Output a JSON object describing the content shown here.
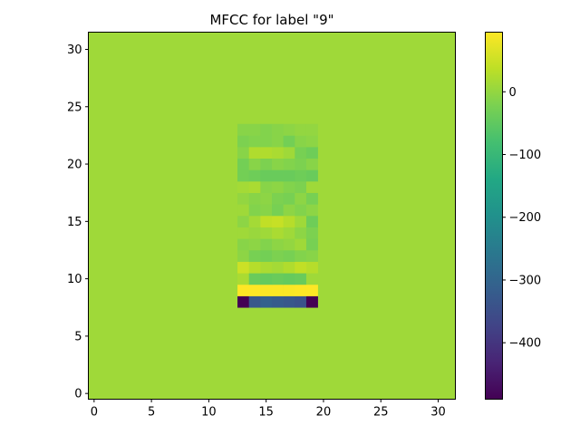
{
  "chart_data": {
    "type": "heatmap",
    "title": "MFCC for label \"9\"",
    "xlabel": "",
    "ylabel": "",
    "xlim": [
      -0.5,
      31.5
    ],
    "ylim": [
      -0.5,
      31.5
    ],
    "grid": false,
    "colormap": "viridis",
    "background_value": 10,
    "color_range": [
      -490,
      95
    ],
    "x_ticks": [
      0,
      5,
      10,
      15,
      20,
      25,
      30
    ],
    "x_tick_labels": [
      "0",
      "5",
      "10",
      "15",
      "20",
      "25",
      "30"
    ],
    "y_ticks": [
      0,
      5,
      10,
      15,
      20,
      25,
      30
    ],
    "y_tick_labels": [
      "0",
      "5",
      "10",
      "15",
      "20",
      "25",
      "30"
    ],
    "colorbar": {
      "ticks": [
        0,
        -100,
        -200,
        -300,
        -400
      ],
      "tick_labels": [
        "0",
        "−100",
        "−200",
        "−300",
        "−400"
      ]
    },
    "patch": {
      "x_start": 13,
      "y_start": 8,
      "rows_from_y8_upward": [
        [
          -490,
          -330,
          -310,
          -320,
          -330,
          -340,
          -490
        ],
        [
          95,
          95,
          92,
          92,
          92,
          95,
          95
        ],
        [
          20,
          -40,
          -45,
          -40,
          -45,
          -40,
          10
        ],
        [
          50,
          30,
          20,
          15,
          25,
          40,
          30
        ],
        [
          -5,
          -25,
          -30,
          -20,
          -25,
          -15,
          -10
        ],
        [
          -10,
          -5,
          -15,
          -5,
          0,
          10,
          -25
        ],
        [
          10,
          5,
          10,
          20,
          10,
          -5,
          -20
        ],
        [
          -5,
          15,
          40,
          45,
          30,
          10,
          -35
        ],
        [
          10,
          -15,
          -10,
          -25,
          -5,
          -15,
          -5
        ],
        [
          0,
          -10,
          -5,
          -20,
          -25,
          -5,
          -25
        ],
        [
          15,
          20,
          -10,
          -5,
          -15,
          -20,
          10
        ],
        [
          -30,
          -35,
          -40,
          -40,
          -40,
          -35,
          -40
        ],
        [
          -30,
          -10,
          -20,
          -10,
          -15,
          -20,
          -10
        ],
        [
          -10,
          25,
          25,
          20,
          10,
          -25,
          -35
        ],
        [
          -20,
          -15,
          -15,
          -10,
          -30,
          -10,
          -5
        ],
        [
          -10,
          -10,
          -15,
          -10,
          -5,
          0,
          0
        ]
      ]
    }
  }
}
